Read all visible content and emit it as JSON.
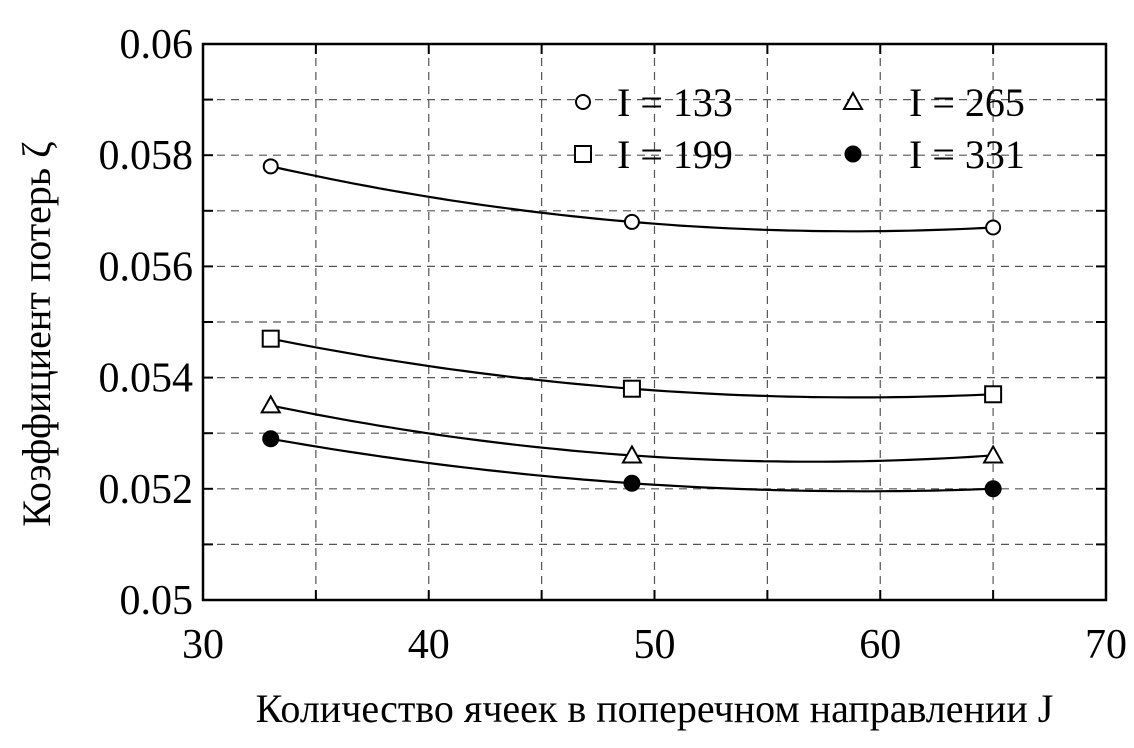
{
  "chart_data": {
    "type": "scatter",
    "xlabel": "Количество ячеек в поперечном направлении J",
    "ylabel": "Коэффициент потерь ζ",
    "xlim": [
      30,
      70
    ],
    "ylim": [
      0.05,
      0.06
    ],
    "xticks": [
      30,
      40,
      50,
      60,
      70
    ],
    "xtick_labels": [
      "30",
      "40",
      "50",
      "60",
      "70"
    ],
    "yticks": [
      0.05,
      0.052,
      0.054,
      0.056,
      0.058,
      0.06
    ],
    "ytick_labels": [
      "0.05",
      "0.052",
      "0.054",
      "0.056",
      "0.058",
      "0.06"
    ],
    "grid": true,
    "legend_position": "top-right",
    "x": [
      33,
      49,
      65
    ],
    "series": [
      {
        "name": "I = 133",
        "marker": "open-circle",
        "values": [
          0.0578,
          0.0568,
          0.0567
        ]
      },
      {
        "name": "I = 199",
        "marker": "open-square",
        "values": [
          0.0547,
          0.0538,
          0.0537
        ]
      },
      {
        "name": "I = 265",
        "marker": "open-triangle",
        "values": [
          0.0535,
          0.0526,
          0.0526
        ]
      },
      {
        "name": "I = 331",
        "marker": "filled-circle",
        "values": [
          0.0529,
          0.0521,
          0.052
        ]
      }
    ],
    "colors": {
      "ink": "#000000",
      "grid": "#555555",
      "background": "#ffffff"
    }
  }
}
